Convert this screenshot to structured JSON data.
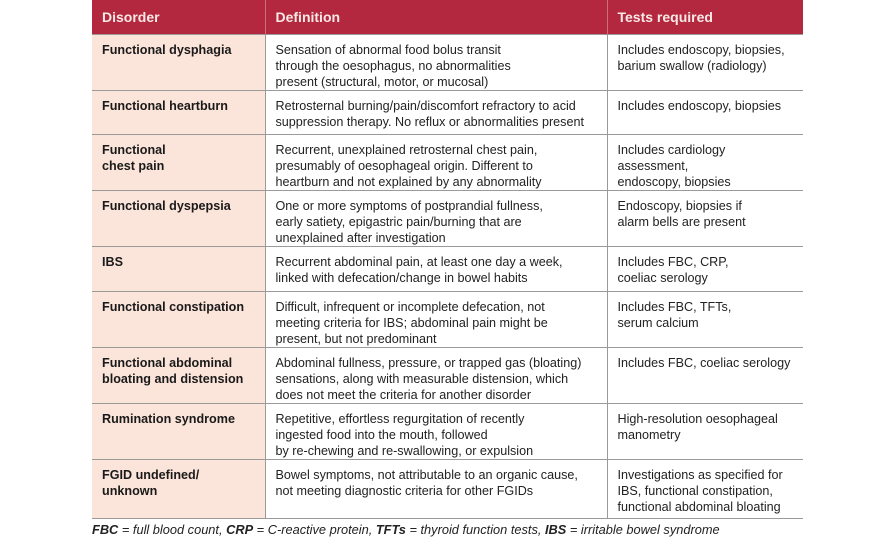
{
  "table": {
    "headers": [
      "Disorder",
      "Definition",
      "Tests required"
    ],
    "rows": [
      {
        "disorder": [
          "Functional dysphagia"
        ],
        "definition": [
          "Sensation of abnormal food bolus transit",
          "through the oesophagus, no abnormalities",
          "present (structural, motor, or mucosal)"
        ],
        "tests": [
          "Includes endoscopy, biopsies,",
          "barium swallow (radiology)"
        ]
      },
      {
        "disorder": [
          "Functional heartburn"
        ],
        "definition": [
          "Retrosternal burning/pain/discomfort refractory to acid",
          "suppression therapy. No reflux or abnormalities present"
        ],
        "tests": [
          "Includes endoscopy, biopsies"
        ]
      },
      {
        "disorder": [
          "Functional",
          "chest pain"
        ],
        "definition": [
          "Recurrent, unexplained retrosternal chest pain,",
          "presumably of oesophageal origin. Different to",
          "heartburn and not explained by any abnormality"
        ],
        "tests": [
          "Includes cardiology",
          "assessment,",
          "endoscopy, biopsies"
        ]
      },
      {
        "disorder": [
          "Functional dyspepsia"
        ],
        "definition": [
          "One or more symptoms of postprandial fullness,",
          "early satiety, epigastric pain/burning that are",
          "unexplained after investigation"
        ],
        "tests": [
          "Endoscopy, biopsies if",
          "alarm bells are present"
        ]
      },
      {
        "disorder": [
          "IBS"
        ],
        "definition": [
          "Recurrent abdominal pain, at least one day a week,",
          "linked with defecation/change in bowel habits"
        ],
        "tests": [
          "Includes FBC, CRP,",
          "coeliac serology"
        ]
      },
      {
        "disorder": [
          "Functional constipation"
        ],
        "definition": [
          "Difficult, infrequent or incomplete defecation, not",
          "meeting criteria for IBS; abdominal pain might be",
          "present, but not predominant"
        ],
        "tests": [
          "Includes FBC, TFTs,",
          "serum calcium"
        ]
      },
      {
        "disorder": [
          "Functional abdominal",
          "bloating and distension"
        ],
        "definition": [
          "Abdominal fullness, pressure, or trapped gas (bloating)",
          "sensations, along with measurable distension, which",
          "does not meet the criteria for another disorder"
        ],
        "tests": [
          "Includes FBC, coeliac serology"
        ]
      },
      {
        "disorder": [
          "Rumination syndrome"
        ],
        "definition": [
          "Repetitive, effortless regurgitation of recently",
          "ingested food into the mouth, followed",
          "by re-chewing and re-swallowing, or expulsion"
        ],
        "tests": [
          "High-resolution oesophageal",
          "manometry"
        ]
      },
      {
        "disorder": [
          "FGID undefined/",
          "unknown"
        ],
        "definition": [
          "Bowel symptoms, not attributable to an organic cause,",
          "not meeting diagnostic criteria for other FGIDs"
        ],
        "tests": [
          "Investigations as specified for",
          "IBS, functional constipation,",
          "functional abdominal bloating"
        ]
      }
    ]
  },
  "footnote": [
    {
      "abbr": "FBC",
      "meaning": " = full blood count, "
    },
    {
      "abbr": "CRP",
      "meaning": " = C-reactive protein, "
    },
    {
      "abbr": "TFTs",
      "meaning": " = thyroid function tests, "
    },
    {
      "abbr": "IBS",
      "meaning": " = irritable bowel syndrome"
    }
  ],
  "colors": {
    "header": "#b3283f",
    "disorder_column": "#fbe4d9"
  }
}
